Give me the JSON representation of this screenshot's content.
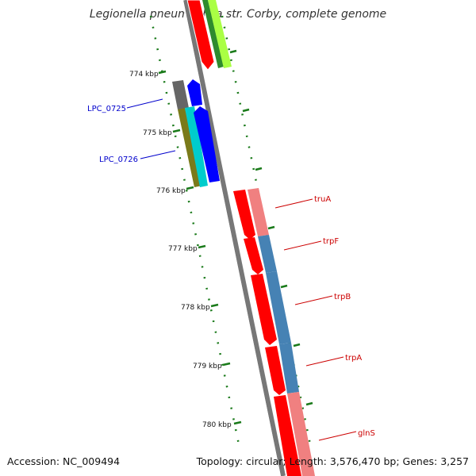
{
  "title": "Legionella pneumophila str. Corby, complete genome",
  "footer": {
    "accession": "Accession: NC_009494",
    "summary": "Topology: circular; Length: 3,576,470 bp; Genes: 3,257"
  },
  "colors": {
    "forward_cds": "#ff0000",
    "reverse_label": "#0000cc",
    "forward_label": "#cc0000",
    "backbone": "#888888",
    "ticks": "#1a7a1a"
  },
  "ticks": [
    "774 kbp",
    "775 kbp",
    "776 kbp",
    "777 kbp",
    "778 kbp",
    "779 kbp",
    "780 kbp"
  ],
  "gene_labels": {
    "reverse": [
      "LPC_0725",
      "LPC_0726"
    ],
    "forward": [
      "truA",
      "trpF",
      "trpB",
      "trpA",
      "glnS"
    ]
  }
}
